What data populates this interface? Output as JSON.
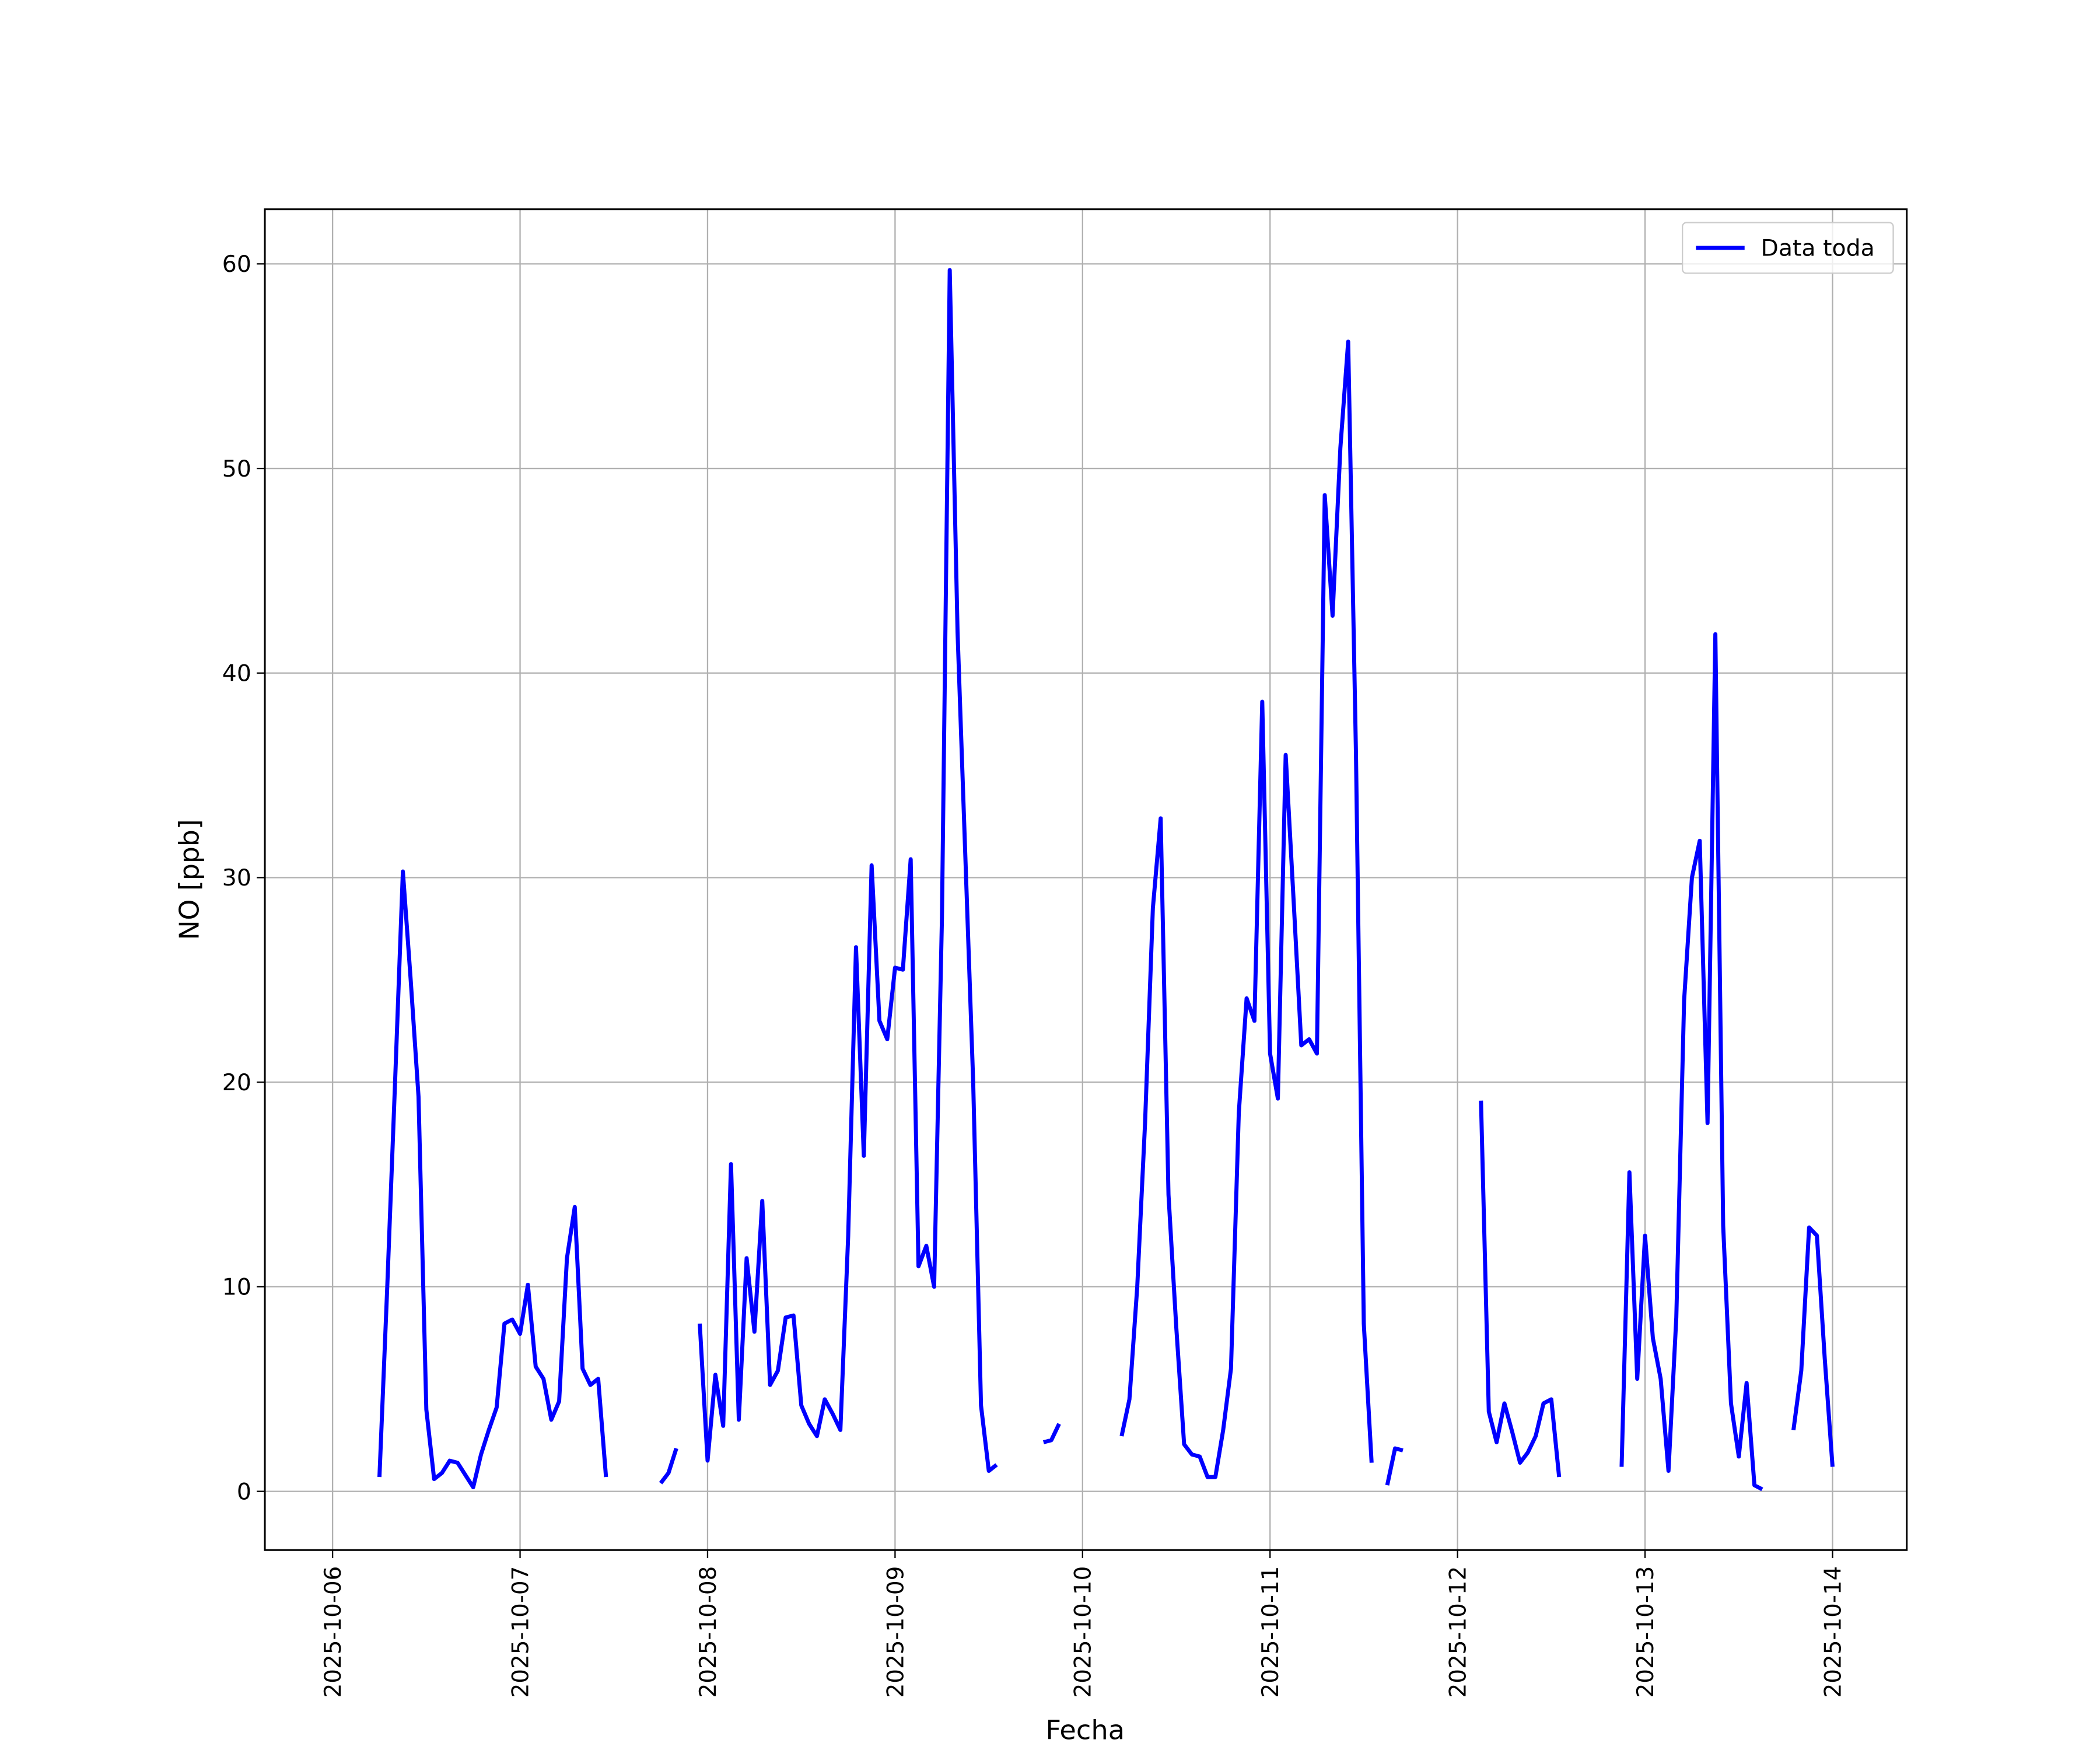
{
  "chart_data": {
    "type": "line",
    "x_label": "Fecha",
    "y_label": "NO [ppb]",
    "x": [
      "2025-10-06 06:00",
      "2025-10-06 07:00",
      "2025-10-06 08:00",
      "2025-10-06 09:00",
      "2025-10-06 10:00",
      "2025-10-06 11:00",
      "2025-10-06 12:00",
      "2025-10-06 13:00",
      "2025-10-06 14:00",
      "2025-10-06 15:00",
      "2025-10-06 16:00",
      "2025-10-06 17:00",
      "2025-10-06 18:00",
      "2025-10-06 19:00",
      "2025-10-06 20:00",
      "2025-10-06 21:00",
      "2025-10-06 22:00",
      "2025-10-06 23:00",
      "2025-10-07 00:00",
      "2025-10-07 01:00",
      "2025-10-07 02:00",
      "2025-10-07 03:00",
      "2025-10-07 04:00",
      "2025-10-07 05:00",
      "2025-10-07 06:00",
      "2025-10-07 07:00",
      "2025-10-07 08:00",
      "2025-10-07 09:00",
      "2025-10-07 10:00",
      "2025-10-07 11:00",
      "2025-10-07 12:00",
      "2025-10-07 13:00",
      "2025-10-07 14:00",
      "2025-10-07 15:00",
      "2025-10-07 16:00",
      "2025-10-07 17:00",
      "2025-10-07 18:00",
      "2025-10-07 19:00",
      "2025-10-07 20:00",
      "2025-10-07 21:00",
      "2025-10-07 22:00",
      "2025-10-07 23:00",
      "2025-10-08 00:00",
      "2025-10-08 01:00",
      "2025-10-08 02:00",
      "2025-10-08 03:00",
      "2025-10-08 04:00",
      "2025-10-08 05:00",
      "2025-10-08 06:00",
      "2025-10-08 07:00",
      "2025-10-08 08:00",
      "2025-10-08 09:00",
      "2025-10-08 10:00",
      "2025-10-08 11:00",
      "2025-10-08 12:00",
      "2025-10-08 13:00",
      "2025-10-08 14:00",
      "2025-10-08 15:00",
      "2025-10-08 16:00",
      "2025-10-08 17:00",
      "2025-10-08 18:00",
      "2025-10-08 19:00",
      "2025-10-08 20:00",
      "2025-10-08 21:00",
      "2025-10-08 22:00",
      "2025-10-08 23:00",
      "2025-10-09 00:00",
      "2025-10-09 01:00",
      "2025-10-09 02:00",
      "2025-10-09 03:00",
      "2025-10-09 04:00",
      "2025-10-09 05:00",
      "2025-10-09 06:00",
      "2025-10-09 07:00",
      "2025-10-09 08:00",
      "2025-10-09 09:00",
      "2025-10-09 10:00",
      "2025-10-09 11:00",
      "2025-10-09 12:00",
      "2025-10-09 13:00",
      "2025-10-09 14:00",
      "2025-10-09 15:00",
      "2025-10-09 16:00",
      "2025-10-09 17:00",
      "2025-10-09 18:00",
      "2025-10-09 19:00",
      "2025-10-09 20:00",
      "2025-10-09 21:00",
      "2025-10-09 22:00",
      "2025-10-09 23:00",
      "2025-10-10 00:00",
      "2025-10-10 01:00",
      "2025-10-10 02:00",
      "2025-10-10 03:00",
      "2025-10-10 04:00",
      "2025-10-10 05:00",
      "2025-10-10 06:00",
      "2025-10-10 07:00",
      "2025-10-10 08:00",
      "2025-10-10 09:00",
      "2025-10-10 10:00",
      "2025-10-10 11:00",
      "2025-10-10 12:00",
      "2025-10-10 13:00",
      "2025-10-10 14:00",
      "2025-10-10 15:00",
      "2025-10-10 16:00",
      "2025-10-10 17:00",
      "2025-10-10 18:00",
      "2025-10-10 19:00",
      "2025-10-10 20:00",
      "2025-10-10 21:00",
      "2025-10-10 22:00",
      "2025-10-10 23:00",
      "2025-10-11 00:00",
      "2025-10-11 01:00",
      "2025-10-11 02:00",
      "2025-10-11 03:00",
      "2025-10-11 04:00",
      "2025-10-11 05:00",
      "2025-10-11 06:00",
      "2025-10-11 07:00",
      "2025-10-11 08:00",
      "2025-10-11 09:00",
      "2025-10-11 10:00",
      "2025-10-11 11:00",
      "2025-10-11 12:00",
      "2025-10-11 13:00",
      "2025-10-11 14:00",
      "2025-10-11 15:00",
      "2025-10-11 16:00",
      "2025-10-11 17:00",
      "2025-10-11 18:00",
      "2025-10-11 19:00",
      "2025-10-11 20:00",
      "2025-10-11 21:00",
      "2025-10-11 22:00",
      "2025-10-11 23:00",
      "2025-10-12 00:00",
      "2025-10-12 01:00",
      "2025-10-12 02:00",
      "2025-10-12 03:00",
      "2025-10-12 04:00",
      "2025-10-12 05:00",
      "2025-10-12 06:00",
      "2025-10-12 07:00",
      "2025-10-12 08:00",
      "2025-10-12 09:00",
      "2025-10-12 10:00",
      "2025-10-12 11:00",
      "2025-10-12 12:00",
      "2025-10-12 13:00",
      "2025-10-12 14:00",
      "2025-10-12 15:00",
      "2025-10-12 16:00",
      "2025-10-12 17:00",
      "2025-10-12 18:00",
      "2025-10-12 19:00",
      "2025-10-12 20:00",
      "2025-10-12 21:00",
      "2025-10-12 22:00",
      "2025-10-12 23:00",
      "2025-10-13 00:00",
      "2025-10-13 01:00",
      "2025-10-13 02:00",
      "2025-10-13 03:00",
      "2025-10-13 04:00",
      "2025-10-13 05:00",
      "2025-10-13 06:00",
      "2025-10-13 07:00",
      "2025-10-13 08:00",
      "2025-10-13 09:00",
      "2025-10-13 10:00",
      "2025-10-13 11:00",
      "2025-10-13 12:00",
      "2025-10-13 13:00",
      "2025-10-13 14:00",
      "2025-10-13 15:00",
      "2025-10-13 16:00",
      "2025-10-13 17:00",
      "2025-10-13 18:00",
      "2025-10-13 19:00",
      "2025-10-13 20:00",
      "2025-10-13 21:00",
      "2025-10-13 22:00",
      "2025-10-13 23:00",
      "2025-10-14 00:00"
    ],
    "series": [
      {
        "name": "Data toda",
        "color": "#0000ff",
        "values": [
          0.7,
          10,
          20,
          30.3,
          25,
          19.3,
          4,
          0.6,
          0.9,
          1.5,
          1.4,
          0.8,
          0.2,
          1.8,
          3,
          4.1,
          8.2,
          8.4,
          7.7,
          10.1,
          6.1,
          5.5,
          3.5,
          4.4,
          11.4,
          13.9,
          6,
          5.2,
          5.5,
          0.7,
          null,
          null,
          null,
          null,
          null,
          null,
          0.4,
          0.9,
          2.1,
          null,
          null,
          8.2,
          1.5,
          5.7,
          3.2,
          16,
          3.5,
          11.4,
          7.8,
          14.2,
          5.2,
          5.9,
          8.5,
          8.6,
          4.2,
          3.3,
          2.7,
          4.5,
          3.8,
          3.0,
          12.5,
          26.6,
          16.4,
          30.6,
          23,
          22.1,
          25.6,
          25.5,
          30.9,
          11,
          12,
          10,
          28,
          59.7,
          42,
          31,
          20,
          4.2,
          1.0,
          1.3,
          null,
          null,
          null,
          null,
          null,
          2.4,
          2.5,
          3.3,
          null,
          null,
          null,
          null,
          null,
          null,
          null,
          2.7,
          4.5,
          10,
          18,
          28.5,
          32.9,
          14.5,
          8,
          2.3,
          1.8,
          1.7,
          0.7,
          0.7,
          3,
          6,
          18.5,
          24.1,
          23,
          38.6,
          21.4,
          19.2,
          36,
          29,
          21.8,
          22.1,
          21.4,
          48.7,
          42.8,
          51,
          56.2,
          36,
          8.2,
          1.4,
          null,
          0.3,
          2.1,
          2.0,
          null,
          null,
          null,
          null,
          null,
          null,
          null,
          null,
          null,
          19.1,
          3.9,
          2.4,
          4.3,
          2.9,
          1.4,
          1.9,
          2.7,
          4.3,
          4.5,
          0.7,
          null,
          null,
          null,
          null,
          null,
          null,
          null,
          1.2,
          15.6,
          5.5,
          12.5,
          7.5,
          5.5,
          1.0,
          8.5,
          24,
          30,
          31.8,
          18,
          41.9,
          13,
          4.3,
          1.7,
          5.3,
          0.3,
          0.1,
          null,
          null,
          null,
          3.0,
          5.9,
          12.9,
          12.5,
          6.5,
          1.2
        ]
      }
    ],
    "xlim": [
      "2025-10-05 15:20",
      "2025-10-14 09:30"
    ],
    "xticks": [
      "2025-10-06",
      "2025-10-07",
      "2025-10-08",
      "2025-10-09",
      "2025-10-10",
      "2025-10-11",
      "2025-10-12",
      "2025-10-13",
      "2025-10-14"
    ],
    "ylim": [
      -2.87,
      62.67
    ],
    "yticks": [
      0,
      10,
      20,
      30,
      40,
      50,
      60
    ],
    "grid": true,
    "legend": "upper right"
  }
}
